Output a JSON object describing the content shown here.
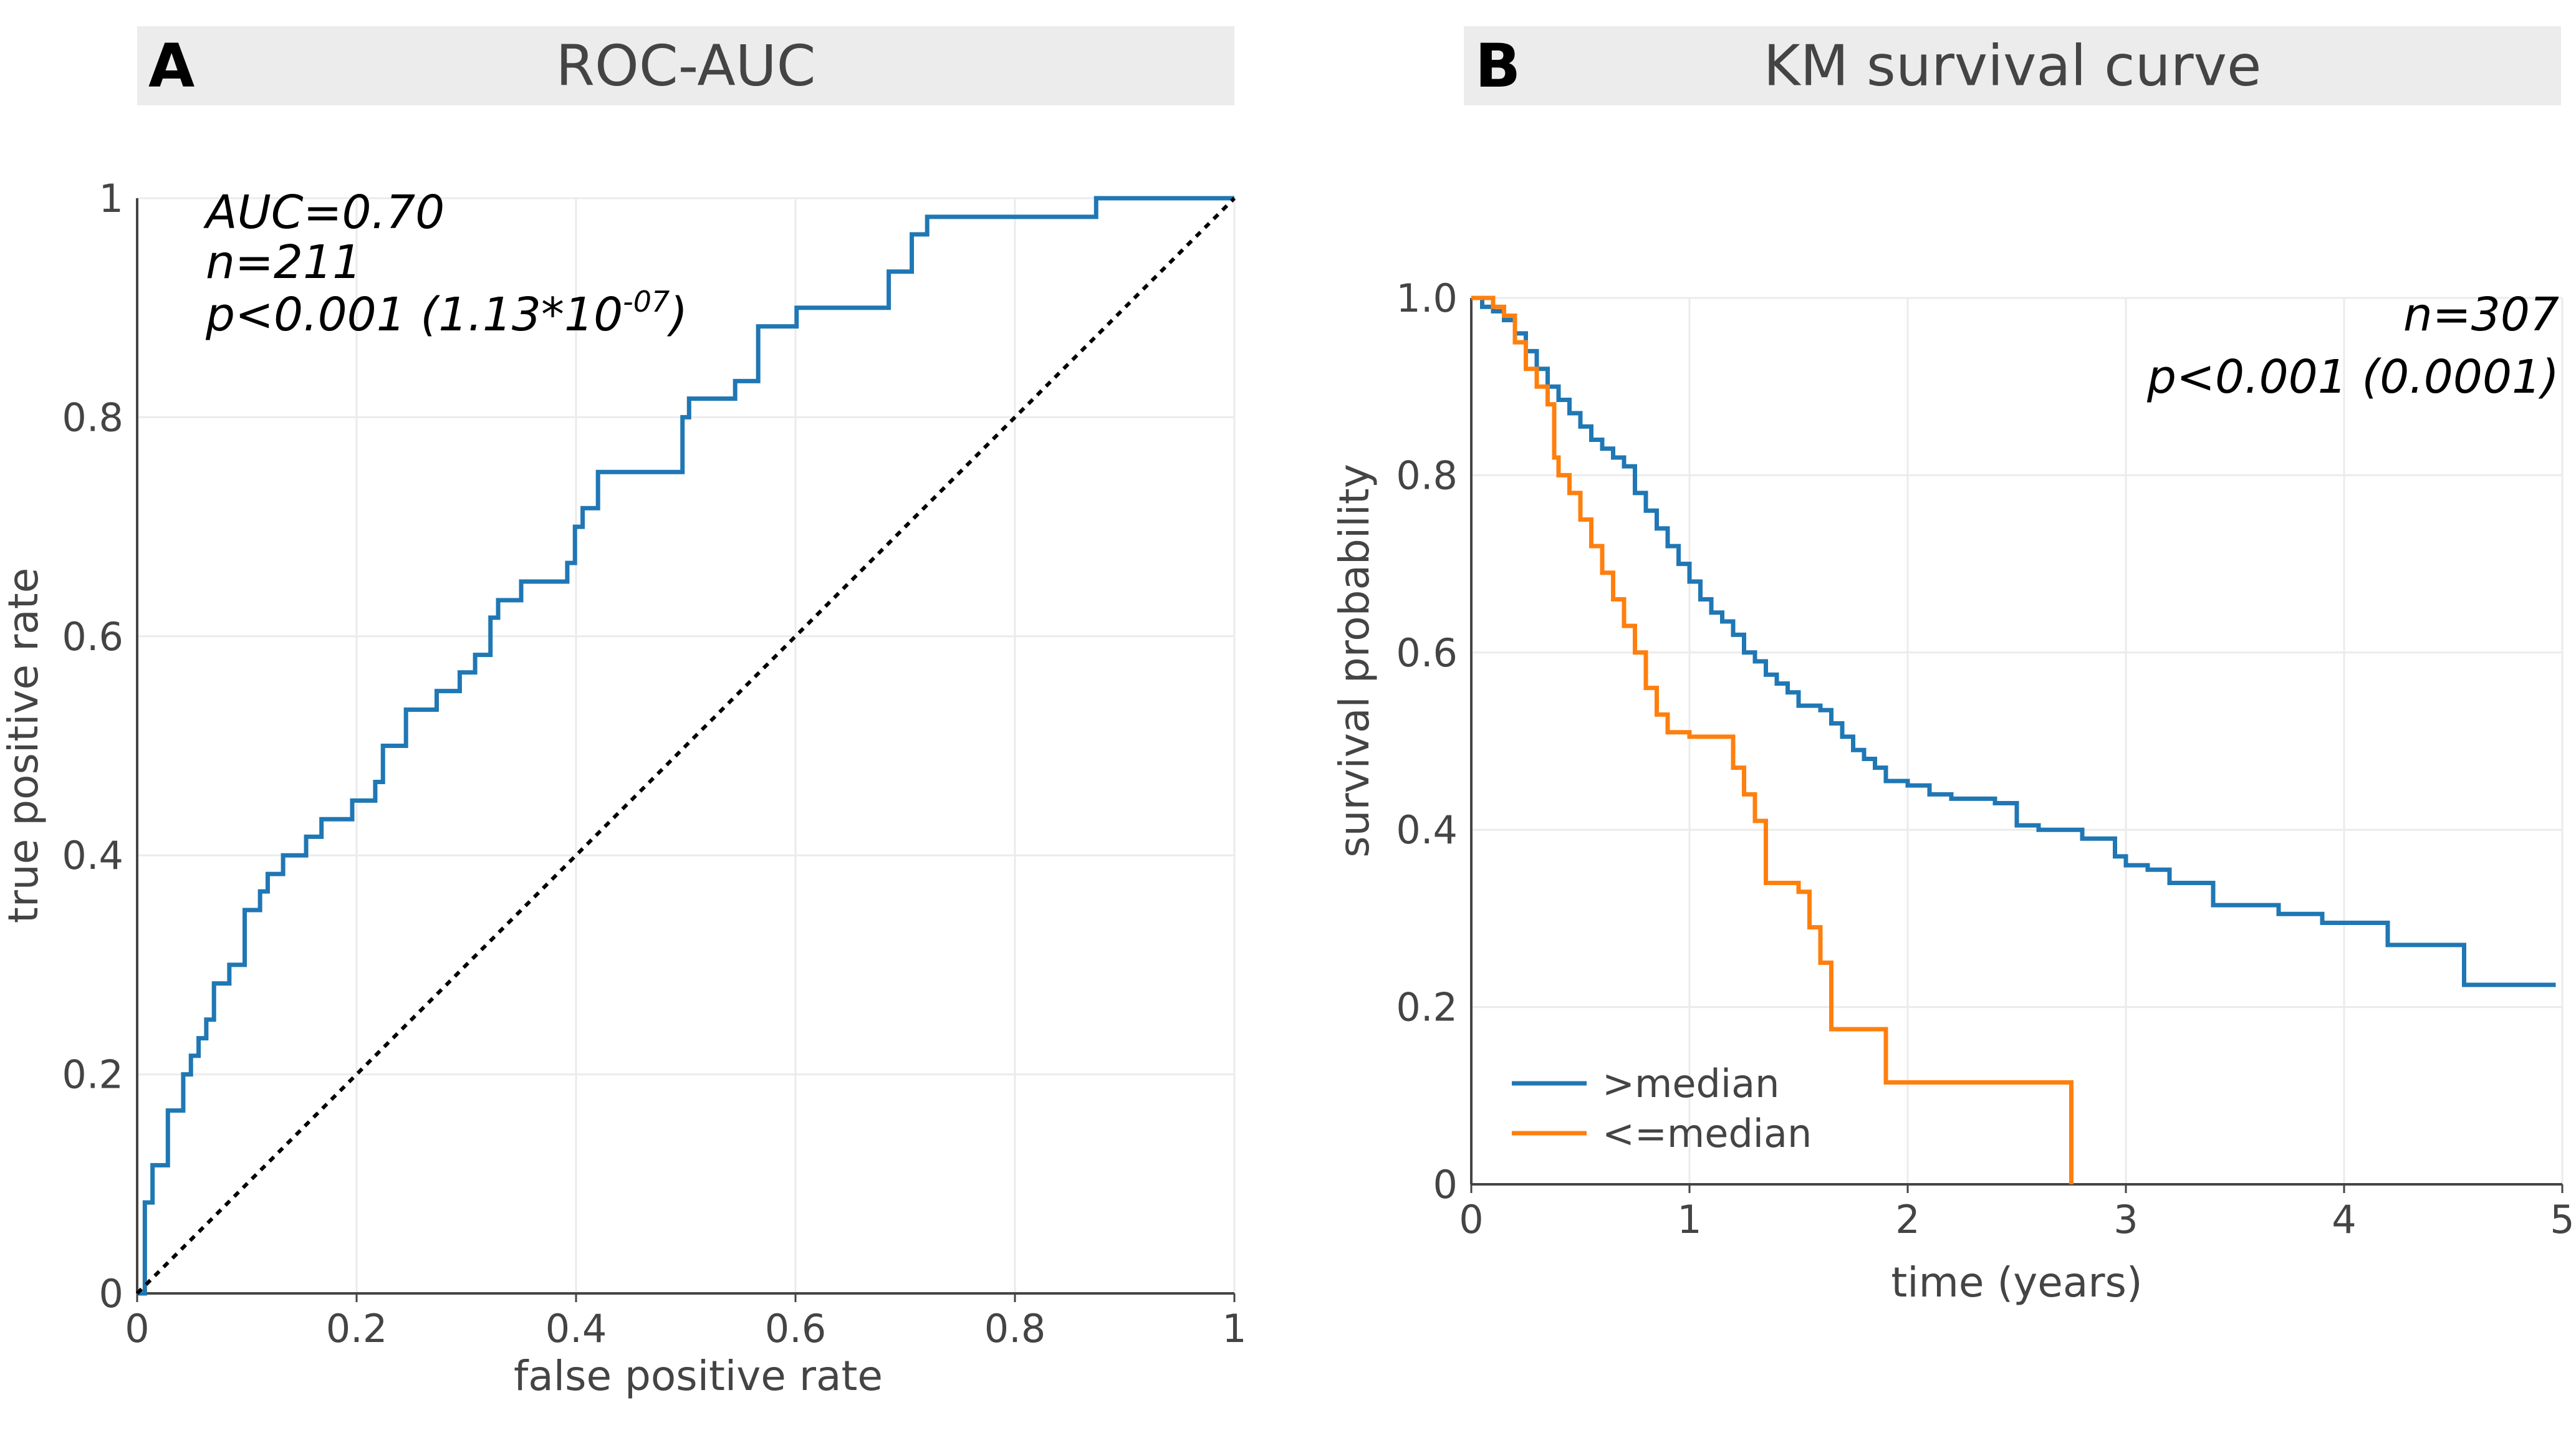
{
  "panels": {
    "a": {
      "letter": "A",
      "title": "ROC-AUC"
    },
    "b": {
      "letter": "B",
      "title": "KM survival curve"
    }
  },
  "chart_data": [
    {
      "type": "line",
      "title": "ROC-AUC",
      "xlabel": "false positive rate",
      "ylabel": "true positive rate",
      "xlim": [
        0,
        1
      ],
      "ylim": [
        0,
        1
      ],
      "xticks": [
        "0",
        "0.2",
        "0.4",
        "0.6",
        "0.8",
        "1"
      ],
      "yticks": [
        "0",
        "0.2",
        "0.4",
        "0.6",
        "0.8",
        "1"
      ],
      "grid": true,
      "annotations": [
        "AUC=0.70",
        "n=211",
        "p<0.001 (1.13*10",
        "-07",
        ")"
      ],
      "series": [
        {
          "name": "",
          "color": "#1f77b4",
          "style": "solid",
          "x": [
            0,
            0.007,
            0.007,
            0.014,
            0.014,
            0.028,
            0.028,
            0.042,
            0.042,
            0.049,
            0.049,
            0.056,
            0.056,
            0.063,
            0.063,
            0.07,
            0.07,
            0.084,
            0.084,
            0.098,
            0.098,
            0.112,
            0.112,
            0.119,
            0.119,
            0.133,
            0.133,
            0.154,
            0.154,
            0.168,
            0.168,
            0.196,
            0.196,
            0.217,
            0.217,
            0.224,
            0.224,
            0.245,
            0.245,
            0.273,
            0.273,
            0.294,
            0.294,
            0.308,
            0.308,
            0.322,
            0.322,
            0.329,
            0.329,
            0.336,
            0.336,
            0.35,
            0.35,
            0.392,
            0.392,
            0.399,
            0.399,
            0.406,
            0.406,
            0.42,
            0.42,
            0.497,
            0.497,
            0.503,
            0.503,
            0.545,
            0.545,
            0.566,
            0.566,
            0.601,
            0.601,
            0.685,
            0.685,
            0.706,
            0.706,
            0.72,
            0.72,
            0.874,
            0.874,
            0.895,
            0.895,
            1.0
          ],
          "y": [
            0,
            0,
            0.083,
            0.083,
            0.117,
            0.117,
            0.167,
            0.167,
            0.2,
            0.2,
            0.217,
            0.217,
            0.233,
            0.233,
            0.25,
            0.25,
            0.283,
            0.283,
            0.3,
            0.3,
            0.35,
            0.35,
            0.367,
            0.367,
            0.383,
            0.383,
            0.4,
            0.4,
            0.417,
            0.417,
            0.433,
            0.433,
            0.45,
            0.45,
            0.467,
            0.467,
            0.5,
            0.5,
            0.533,
            0.533,
            0.55,
            0.55,
            0.567,
            0.567,
            0.583,
            0.583,
            0.617,
            0.617,
            0.633,
            0.633,
            0.633,
            0.633,
            0.65,
            0.65,
            0.667,
            0.667,
            0.7,
            0.7,
            0.717,
            0.717,
            0.75,
            0.75,
            0.8,
            0.8,
            0.817,
            0.817,
            0.833,
            0.833,
            0.883,
            0.883,
            0.9,
            0.9,
            0.933,
            0.933,
            0.967,
            0.967,
            0.983,
            0.983,
            1.0,
            1.0,
            1.0,
            1.0
          ]
        },
        {
          "name": "",
          "color": "#000000",
          "style": "dotted",
          "x": [
            0,
            1
          ],
          "y": [
            0,
            1
          ]
        }
      ]
    },
    {
      "type": "line",
      "title": "KM survival curve",
      "xlabel": "time (years)",
      "ylabel": "survival probability",
      "xlim": [
        0,
        5
      ],
      "ylim": [
        0,
        1
      ],
      "xticks": [
        "0",
        "1",
        "2",
        "3",
        "4",
        "5"
      ],
      "yticks": [
        "0",
        "0.2",
        "0.4",
        "0.6",
        "0.8",
        "1.0"
      ],
      "grid": true,
      "legend": "bottom-left",
      "annotations": [
        "n=307",
        "p<0.001 (0.0001)"
      ],
      "series": [
        {
          "name": ">median",
          "color": "#1f77b4",
          "x": [
            0,
            0.05,
            0.1,
            0.15,
            0.2,
            0.25,
            0.3,
            0.35,
            0.4,
            0.45,
            0.5,
            0.55,
            0.6,
            0.65,
            0.7,
            0.75,
            0.8,
            0.85,
            0.9,
            0.95,
            1.0,
            1.05,
            1.1,
            1.15,
            1.2,
            1.25,
            1.3,
            1.35,
            1.4,
            1.45,
            1.5,
            1.55,
            1.6,
            1.65,
            1.7,
            1.75,
            1.8,
            1.85,
            1.9,
            2.0,
            2.1,
            2.2,
            2.4,
            2.5,
            2.6,
            2.8,
            2.95,
            3.0,
            3.1,
            3.2,
            3.4,
            3.7,
            3.9,
            4.1,
            4.2,
            4.35,
            4.55,
            4.6,
            4.8,
            4.97
          ],
          "y": [
            1.0,
            0.99,
            0.985,
            0.975,
            0.96,
            0.94,
            0.92,
            0.9,
            0.885,
            0.87,
            0.855,
            0.84,
            0.83,
            0.82,
            0.81,
            0.78,
            0.76,
            0.74,
            0.72,
            0.7,
            0.68,
            0.66,
            0.645,
            0.635,
            0.62,
            0.6,
            0.59,
            0.575,
            0.565,
            0.555,
            0.54,
            0.54,
            0.535,
            0.52,
            0.505,
            0.49,
            0.48,
            0.47,
            0.455,
            0.45,
            0.44,
            0.435,
            0.43,
            0.405,
            0.4,
            0.39,
            0.37,
            0.36,
            0.355,
            0.34,
            0.315,
            0.305,
            0.295,
            0.295,
            0.27,
            0.27,
            0.225,
            0.225,
            0.225,
            0.225
          ]
        },
        {
          "name": "<=median",
          "color": "#ff7f0e",
          "x": [
            0,
            0.05,
            0.1,
            0.15,
            0.2,
            0.25,
            0.3,
            0.35,
            0.38,
            0.4,
            0.45,
            0.5,
            0.55,
            0.6,
            0.65,
            0.7,
            0.75,
            0.8,
            0.85,
            0.9,
            0.95,
            1.0,
            1.1,
            1.2,
            1.25,
            1.3,
            1.35,
            1.5,
            1.55,
            1.6,
            1.65,
            1.9,
            2.0,
            2.4,
            2.6,
            2.75
          ],
          "y": [
            1.0,
            1.0,
            0.99,
            0.98,
            0.95,
            0.92,
            0.9,
            0.88,
            0.82,
            0.8,
            0.78,
            0.75,
            0.72,
            0.69,
            0.66,
            0.63,
            0.6,
            0.56,
            0.53,
            0.51,
            0.51,
            0.505,
            0.505,
            0.47,
            0.44,
            0.41,
            0.34,
            0.33,
            0.29,
            0.25,
            0.175,
            0.115,
            0.115,
            0.115,
            0.115,
            0.0
          ]
        }
      ]
    }
  ]
}
